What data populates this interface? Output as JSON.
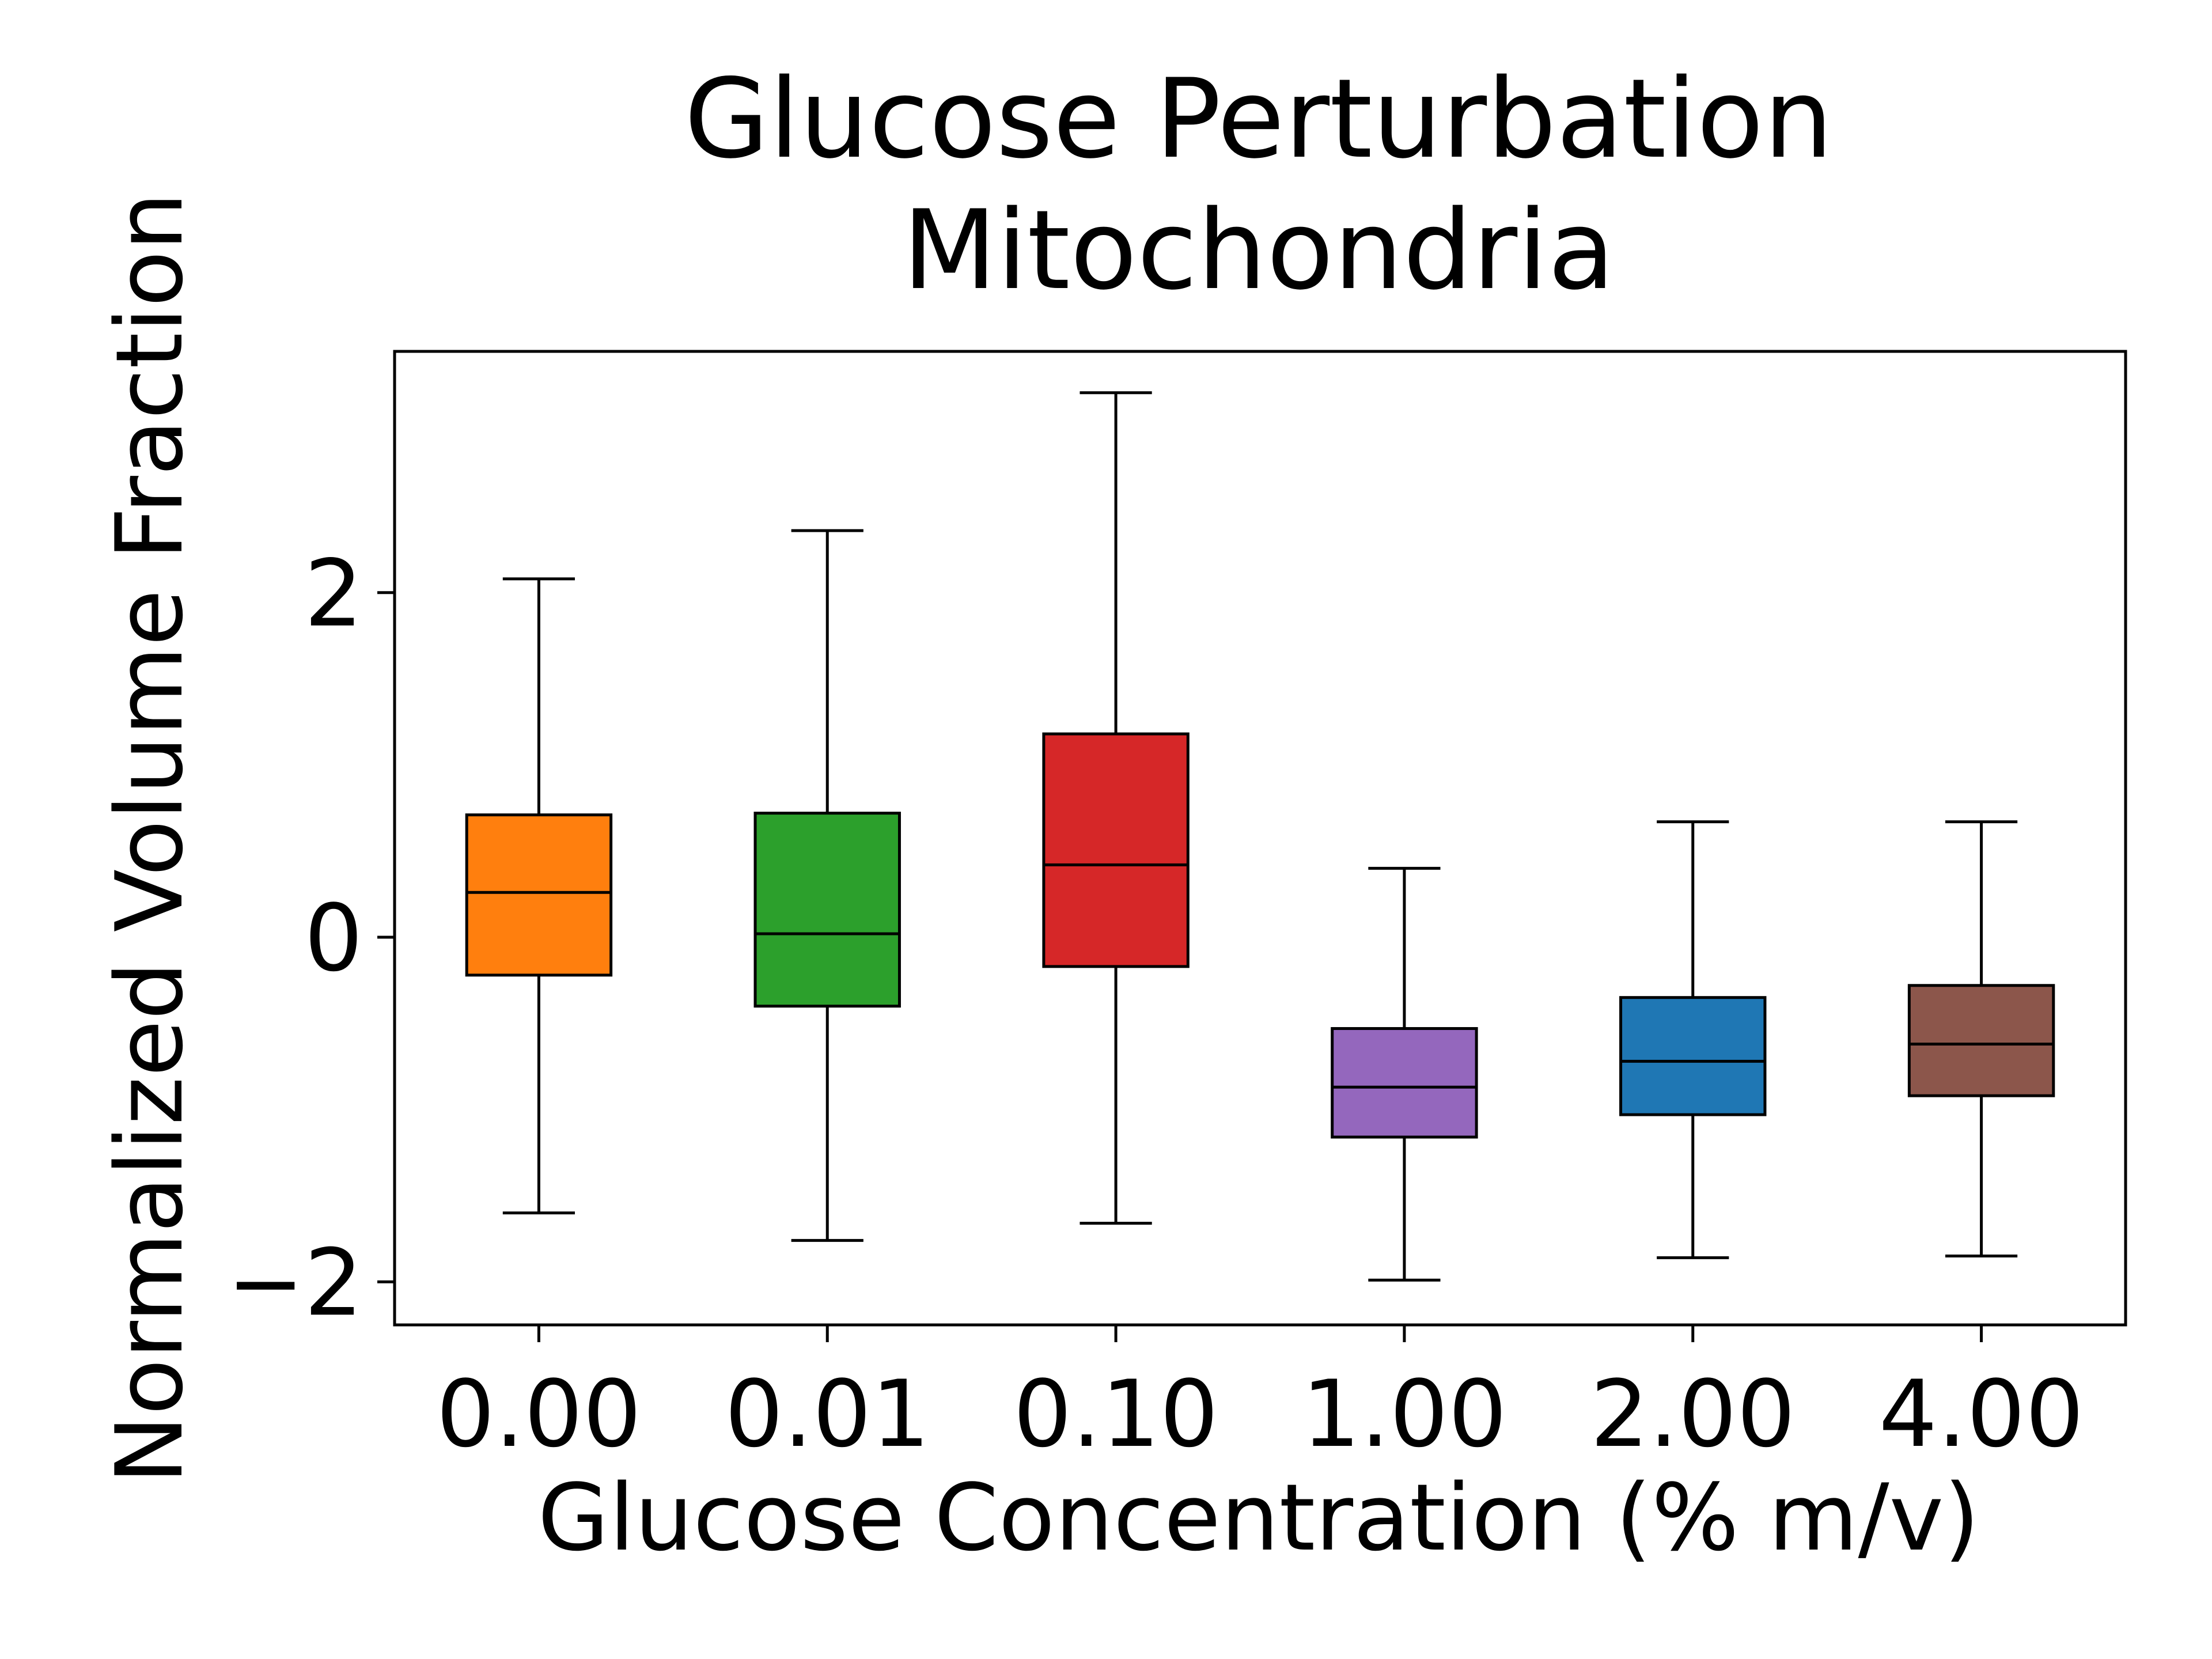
{
  "chart_data": {
    "type": "box",
    "title": "Glucose Perturbation\nMitochondria",
    "title_lines": [
      "Glucose Perturbation",
      "Mitochondria"
    ],
    "xlabel": "Glucose Concentration (% m/v)",
    "ylabel": "Normalized Volume Fraction",
    "categories": [
      "0.00",
      "0.01",
      "0.10",
      "1.00",
      "2.00",
      "4.00"
    ],
    "ylim": [
      -2.25,
      3.4
    ],
    "yticks": [
      -2,
      0,
      2
    ],
    "ytick_labels": [
      "−2",
      "0",
      "2"
    ],
    "grid": false,
    "legend": "none",
    "boxes": [
      {
        "category": "0.00",
        "whisker_low": -1.6,
        "q1": -0.22,
        "median": 0.26,
        "q3": 0.71,
        "whisker_high": 2.08,
        "color": "#ff7f0e"
      },
      {
        "category": "0.01",
        "whisker_low": -1.76,
        "q1": -0.4,
        "median": 0.02,
        "q3": 0.72,
        "whisker_high": 2.36,
        "color": "#2ca02c"
      },
      {
        "category": "0.10",
        "whisker_low": -1.66,
        "q1": -0.17,
        "median": 0.42,
        "q3": 1.18,
        "whisker_high": 3.16,
        "color": "#d62728"
      },
      {
        "category": "1.00",
        "whisker_low": -1.99,
        "q1": -1.16,
        "median": -0.87,
        "q3": -0.53,
        "whisker_high": 0.4,
        "color": "#9467bd"
      },
      {
        "category": "2.00",
        "whisker_low": -1.86,
        "q1": -1.03,
        "median": -0.72,
        "q3": -0.35,
        "whisker_high": 0.67,
        "color": "#1f77b4"
      },
      {
        "category": "4.00",
        "whisker_low": -1.85,
        "q1": -0.92,
        "median": -0.62,
        "q3": -0.28,
        "whisker_high": 0.67,
        "color": "#8c564b"
      }
    ]
  }
}
